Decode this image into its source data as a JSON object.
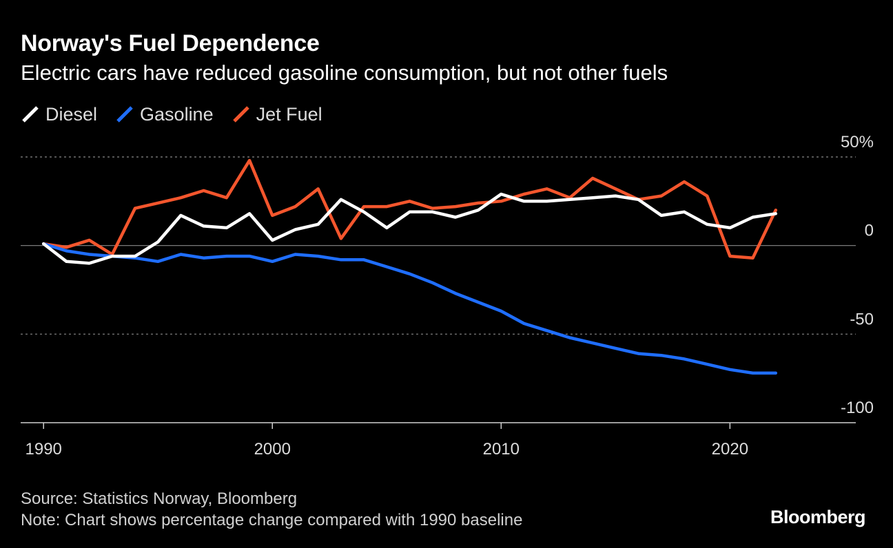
{
  "header": {
    "title": "Norway's Fuel Dependence",
    "subtitle": "Electric cars have reduced gasoline consumption, but not other fuels"
  },
  "footer": {
    "source": "Source: Statistics Norway, Bloomberg",
    "note": "Note: Chart shows percentage change compared with 1990 baseline",
    "logo": "Bloomberg"
  },
  "chart_data": {
    "type": "line",
    "title": "Norway's Fuel Dependence",
    "subtitle": "Electric cars have reduced gasoline consumption, but not other fuels",
    "xlabel": "",
    "ylabel": "",
    "xlim": [
      1989,
      2025.5
    ],
    "ylim": [
      -100,
      50
    ],
    "x_ticks": [
      1990,
      2000,
      2010,
      2020
    ],
    "x_tick_labels": [
      "1990",
      "2000",
      "2010",
      "2020"
    ],
    "y_ticks": [
      50,
      0,
      -50,
      -100
    ],
    "y_tick_labels": [
      "50%",
      "0",
      "-50",
      "-100"
    ],
    "grid": "dotted horizontal at 50 and -50",
    "legend_position": "top-left",
    "x": [
      1990,
      1991,
      1992,
      1993,
      1994,
      1995,
      1996,
      1997,
      1998,
      1999,
      2000,
      2001,
      2002,
      2003,
      2004,
      2005,
      2006,
      2007,
      2008,
      2009,
      2010,
      2011,
      2012,
      2013,
      2014,
      2015,
      2016,
      2017,
      2018,
      2019,
      2020,
      2021,
      2022
    ],
    "series": [
      {
        "name": "Diesel",
        "color": "#ffffff",
        "values": [
          1,
          -9,
          -10,
          -6,
          -6,
          2,
          17,
          11,
          10,
          18,
          3,
          9,
          12,
          26,
          19,
          10,
          19,
          19,
          16,
          20,
          29,
          25,
          25,
          26,
          27,
          28,
          26,
          17,
          19,
          12,
          10,
          16,
          18
        ]
      },
      {
        "name": "Gasoline",
        "color": "#1f6eff",
        "values": [
          1,
          -3,
          -5,
          -6,
          -7,
          -9,
          -5,
          -7,
          -6,
          -6,
          -9,
          -5,
          -6,
          -8,
          -8,
          -12,
          -16,
          -21,
          -27,
          -32,
          -37,
          -44,
          -48,
          -52,
          -55,
          -58,
          -61,
          -62,
          -64,
          -67,
          -70,
          -72,
          -72
        ]
      },
      {
        "name": "Jet Fuel",
        "color": "#f4562d",
        "values": [
          1,
          -1,
          3,
          -5,
          21,
          24,
          27,
          31,
          27,
          48,
          17,
          22,
          32,
          4,
          22,
          22,
          25,
          21,
          22,
          24,
          25,
          29,
          32,
          27,
          38,
          32,
          26,
          28,
          36,
          28,
          -6,
          -7,
          20
        ]
      }
    ]
  }
}
